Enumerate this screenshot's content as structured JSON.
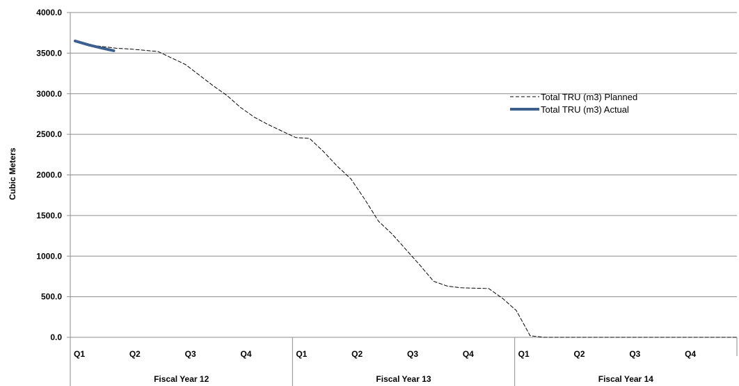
{
  "chart_data": {
    "type": "line",
    "ylabel": "Cubic Meters",
    "ylim": [
      0,
      4000
    ],
    "yticks": [
      "0.0",
      "500.0",
      "1000.0",
      "1500.0",
      "2000.0",
      "2500.0",
      "3000.0",
      "3500.0",
      "4000.0"
    ],
    "grid": true,
    "legend_position": "right",
    "categories": [
      "Q1",
      "Q2",
      "Q3",
      "Q4",
      "Q1",
      "Q2",
      "Q3",
      "Q4",
      "Q1",
      "Q2",
      "Q3",
      "Q4"
    ],
    "groups": [
      {
        "label": "Fiscal Year 12",
        "span": 4
      },
      {
        "label": "Fiscal Year 13",
        "span": 4
      },
      {
        "label": "Fiscal Year 14",
        "span": 4
      }
    ],
    "series": [
      {
        "name": "Total TRU (m3) Planned",
        "style": "dashed",
        "color": "#000000",
        "x": [
          0.0,
          0.5,
          1.0,
          1.5,
          2.0,
          2.5,
          3.0,
          3.5,
          4.0,
          4.5,
          5.0,
          5.5,
          6.0,
          6.5,
          7.0,
          7.5,
          8.0,
          8.5,
          9.0,
          9.5,
          10.0,
          10.5,
          11.0,
          11.5,
          12.0,
          12.5,
          13.0,
          13.5,
          14.0,
          14.5,
          15.0,
          15.5,
          16.0,
          16.5,
          17.0,
          17.5,
          18.0,
          18.5,
          19.0,
          19.5,
          20.0,
          20.5,
          21.0,
          21.5,
          22.0,
          22.5,
          23.0,
          23.5,
          24.0
        ],
        "values": [
          3640,
          3600,
          3580,
          3560,
          3550,
          3535,
          3520,
          3440,
          3360,
          3230,
          3100,
          2980,
          2830,
          2710,
          2620,
          2540,
          2460,
          2450,
          2290,
          2110,
          1950,
          1700,
          1430,
          1270,
          1080,
          890,
          690,
          630,
          610,
          605,
          600,
          480,
          330,
          20,
          0,
          0,
          0,
          0,
          0,
          0,
          0,
          0,
          0,
          0,
          0,
          0,
          0,
          0,
          0
        ]
      },
      {
        "name": "Total TRU (m3) Actual",
        "style": "solid",
        "color": "#3D5F8E",
        "x": [
          0.0,
          0.5,
          1.0,
          1.4
        ],
        "values": [
          3650,
          3600,
          3560,
          3530
        ]
      }
    ]
  }
}
